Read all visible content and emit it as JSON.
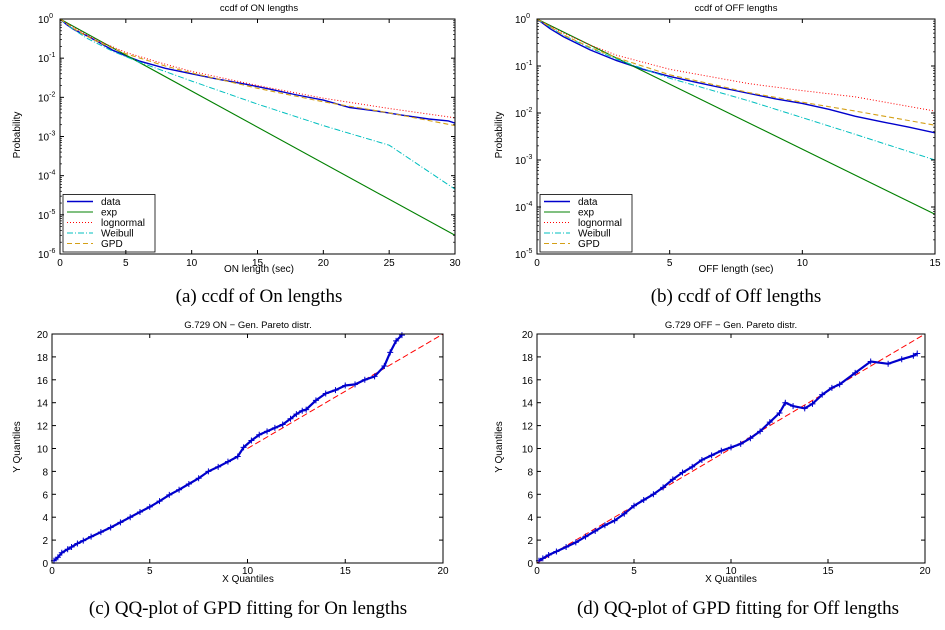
{
  "chart_data": [
    {
      "id": "a",
      "type": "line",
      "title": "ccdf of ON lengths",
      "caption": "(a) ccdf of On lengths",
      "xlabel": "ON length (sec)",
      "ylabel": "Probability",
      "xlim": [
        0,
        30
      ],
      "ylim_log10": [
        -6,
        0
      ],
      "yscale": "log",
      "xticks": [
        0,
        5,
        10,
        15,
        20,
        25,
        30
      ],
      "yticks_exp": [
        -6,
        -5,
        -4,
        -3,
        -2,
        -1,
        0
      ],
      "legend_position": "bottom-left",
      "series": [
        {
          "name": "data",
          "color": "#0000cc",
          "dash": "",
          "width": 1.4,
          "x": [
            0,
            0.5,
            1,
            2,
            3,
            4,
            5,
            6,
            8,
            10,
            12,
            14,
            16,
            18,
            20,
            22,
            24,
            26,
            28,
            29.5,
            30
          ],
          "y": [
            1,
            0.72,
            0.55,
            0.38,
            0.25,
            0.16,
            0.115,
            0.085,
            0.055,
            0.04,
            0.029,
            0.022,
            0.016,
            0.0115,
            0.0085,
            0.0055,
            0.0045,
            0.0035,
            0.0028,
            0.0025,
            0.0022
          ]
        },
        {
          "name": "exp",
          "color": "#008000",
          "dash": "",
          "width": 1.1,
          "x": [
            0,
            30
          ],
          "y": [
            1,
            3e-06
          ]
        },
        {
          "name": "lognormal",
          "color": "#ff0000",
          "dash": "1,2",
          "width": 1.0,
          "x": [
            0,
            1,
            2,
            3,
            5,
            8,
            10,
            15,
            20,
            25,
            30
          ],
          "y": [
            1,
            0.62,
            0.4,
            0.27,
            0.14,
            0.07,
            0.046,
            0.02,
            0.0095,
            0.0052,
            0.003
          ]
        },
        {
          "name": "Weibull",
          "color": "#00bfbf",
          "dash": "6,2,1,2",
          "width": 1.0,
          "x": [
            0,
            1,
            2,
            4,
            6,
            10,
            15,
            20,
            25,
            30
          ],
          "y": [
            1,
            0.55,
            0.33,
            0.15,
            0.08,
            0.026,
            0.0067,
            0.0019,
            0.0006,
            4.5e-05
          ]
        },
        {
          "name": "GPD",
          "color": "#d4a017",
          "dash": "5,3",
          "width": 1.1,
          "x": [
            0,
            1,
            2,
            3,
            5,
            8,
            10,
            15,
            20,
            25,
            30
          ],
          "y": [
            1,
            0.58,
            0.37,
            0.25,
            0.13,
            0.063,
            0.042,
            0.017,
            0.0077,
            0.004,
            0.0019
          ]
        }
      ]
    },
    {
      "id": "b",
      "type": "line",
      "title": "ccdf of OFF lengths",
      "caption": "(b) ccdf of Off lengths",
      "xlabel": "OFF length (sec)",
      "ylabel": "Probability",
      "xlim": [
        0,
        15
      ],
      "ylim_log10": [
        -5,
        0
      ],
      "yscale": "log",
      "xticks": [
        0,
        5,
        10,
        15
      ],
      "yticks_exp": [
        -5,
        -4,
        -3,
        -2,
        -1,
        0
      ],
      "legend_position": "bottom-left",
      "series": [
        {
          "name": "data",
          "color": "#0000cc",
          "dash": "",
          "width": 1.4,
          "x": [
            0,
            0.5,
            1,
            2,
            3,
            4,
            5,
            6,
            7,
            8,
            9,
            10,
            11,
            12,
            13,
            14,
            15
          ],
          "y": [
            1,
            0.62,
            0.42,
            0.22,
            0.13,
            0.085,
            0.06,
            0.045,
            0.034,
            0.026,
            0.02,
            0.016,
            0.012,
            0.0085,
            0.0065,
            0.005,
            0.0038
          ]
        },
        {
          "name": "exp",
          "color": "#008000",
          "dash": "",
          "width": 1.1,
          "x": [
            0,
            15
          ],
          "y": [
            1,
            7e-05
          ]
        },
        {
          "name": "lognormal",
          "color": "#ff0000",
          "dash": "1,2",
          "width": 1.0,
          "x": [
            0,
            1,
            2,
            3,
            5,
            8,
            10,
            12,
            15
          ],
          "y": [
            1,
            0.5,
            0.28,
            0.17,
            0.085,
            0.042,
            0.03,
            0.022,
            0.011
          ]
        },
        {
          "name": "Weibull",
          "color": "#00bfbf",
          "dash": "6,2,1,2",
          "width": 1.0,
          "x": [
            0,
            1,
            2,
            3,
            5,
            8,
            10,
            12,
            15
          ],
          "y": [
            1,
            0.45,
            0.24,
            0.14,
            0.055,
            0.018,
            0.008,
            0.0035,
            0.001
          ]
        },
        {
          "name": "GPD",
          "color": "#d4a017",
          "dash": "5,3",
          "width": 1.1,
          "x": [
            0,
            1,
            2,
            3,
            5,
            8,
            10,
            12,
            15
          ],
          "y": [
            1,
            0.46,
            0.25,
            0.15,
            0.065,
            0.027,
            0.017,
            0.011,
            0.0055
          ]
        }
      ]
    },
    {
      "id": "c",
      "type": "scatter",
      "title": "G.729 ON − Gen. Pareto distr.",
      "caption": "(c) QQ-plot of GPD fitting for On lengths",
      "xlabel": "X Quantiles",
      "ylabel": "Y Quantiles",
      "xlim": [
        0,
        20
      ],
      "ylim": [
        0,
        20
      ],
      "xticks": [
        0,
        5,
        10,
        15,
        20
      ],
      "yticks": [
        0,
        2,
        4,
        6,
        8,
        10,
        12,
        14,
        16,
        18,
        20
      ],
      "reference_line": {
        "color": "#ff0000",
        "dash": "6,3",
        "x": [
          10,
          20
        ],
        "y": [
          10,
          20
        ]
      },
      "marker_color": "#0000cc",
      "points": {
        "x": [
          0.1,
          0.3,
          0.5,
          0.8,
          1.0,
          1.3,
          1.6,
          2.0,
          2.5,
          3.0,
          3.5,
          4.0,
          4.5,
          5.0,
          5.5,
          6.0,
          6.5,
          7.0,
          7.5,
          8.0,
          8.5,
          9.0,
          9.5,
          9.8,
          10.2,
          10.6,
          11.0,
          11.4,
          11.8,
          12.2,
          12.5,
          12.8,
          13.0,
          13.5,
          14.0,
          14.5,
          15.0,
          15.5,
          16.0,
          16.5,
          17.0,
          17.3,
          17.6,
          17.9
        ],
        "y": [
          0.2,
          0.5,
          0.9,
          1.2,
          1.4,
          1.7,
          1.95,
          2.3,
          2.7,
          3.1,
          3.55,
          4.0,
          4.45,
          4.9,
          5.4,
          5.95,
          6.4,
          6.9,
          7.4,
          8.0,
          8.4,
          8.85,
          9.3,
          10.1,
          10.7,
          11.2,
          11.5,
          11.8,
          12.1,
          12.6,
          13.0,
          13.3,
          13.4,
          14.2,
          14.8,
          15.1,
          15.5,
          15.6,
          16.0,
          16.3,
          17.2,
          18.4,
          19.4,
          19.9
        ]
      }
    },
    {
      "id": "d",
      "type": "scatter",
      "title": "G.729 OFF − Gen. Pareto distr.",
      "caption": "(d) QQ-plot of GPD fitting for Off lengths",
      "xlabel": "X Quantiles",
      "ylabel": "Y Quantiles",
      "xlim": [
        0,
        20
      ],
      "ylim": [
        0,
        20
      ],
      "xticks": [
        0,
        5,
        10,
        15,
        20
      ],
      "yticks": [
        0,
        2,
        4,
        6,
        8,
        10,
        12,
        14,
        16,
        18,
        20
      ],
      "reference_line": {
        "color": "#ff0000",
        "dash": "6,3",
        "x": [
          0,
          20
        ],
        "y": [
          0,
          20
        ]
      },
      "marker_color": "#0000cc",
      "points": {
        "x": [
          0.1,
          0.3,
          0.6,
          1.0,
          1.5,
          2.0,
          2.5,
          3.0,
          3.5,
          4.0,
          4.5,
          5.0,
          5.5,
          6.0,
          6.5,
          7.0,
          7.5,
          8.0,
          8.5,
          9.0,
          9.5,
          10.0,
          10.5,
          11.0,
          11.5,
          12.0,
          12.5,
          12.8,
          13.2,
          13.8,
          14.2,
          14.7,
          15.2,
          15.6,
          16.4,
          17.2,
          18.1,
          18.8,
          19.4,
          19.6
        ],
        "y": [
          0.2,
          0.4,
          0.7,
          1.0,
          1.4,
          1.8,
          2.3,
          2.8,
          3.3,
          3.7,
          4.3,
          5.0,
          5.5,
          6.0,
          6.6,
          7.3,
          7.9,
          8.4,
          9.0,
          9.4,
          9.8,
          10.1,
          10.4,
          10.9,
          11.5,
          12.3,
          13.1,
          14.0,
          13.7,
          13.5,
          13.9,
          14.7,
          15.3,
          15.6,
          16.6,
          17.6,
          17.4,
          17.8,
          18.1,
          18.3
        ]
      }
    }
  ]
}
